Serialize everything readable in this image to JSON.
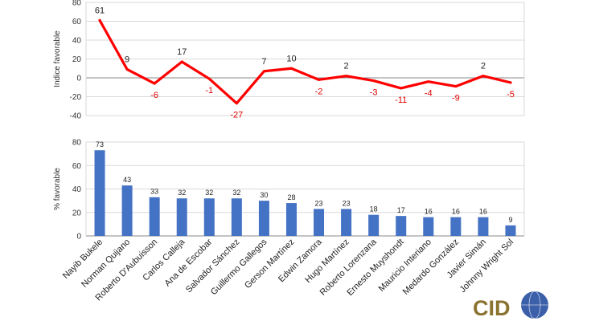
{
  "chart_data": [
    {
      "type": "line",
      "ylabel": "Indice favorable",
      "ylim": [
        -40,
        80
      ],
      "yticks": [
        -40,
        -20,
        0,
        20,
        40,
        60,
        80
      ],
      "grid": true,
      "categories": [
        "Nayib Bukele",
        "Norman Quijano",
        "Roberto D'Aubuisson",
        "Carlos Calleja",
        "Ana de Escobar",
        "Salvador Sánchez",
        "Guillermo Gallegos",
        "Gerson Martínez",
        "Edwin Zamora",
        "Hugo Martínez",
        "Roberto Lorenzana",
        "Ernesto Muyshondt",
        "Mauricio Interiano",
        "Medardo González",
        "Javier Simán",
        "Johnny Wright Sol"
      ],
      "values": [
        61,
        9,
        -6,
        17,
        -1,
        -27,
        7,
        10,
        -2,
        2,
        -3,
        -11,
        -4,
        -9,
        2,
        -5
      ],
      "line_color": "#ff0000",
      "positive_label_color": "#222222",
      "negative_label_color": "#e00000"
    },
    {
      "type": "bar",
      "ylabel": "% favorable",
      "ylim": [
        0,
        80
      ],
      "yticks": [
        0,
        20,
        40,
        60,
        80
      ],
      "grid": true,
      "categories": [
        "Nayib Bukele",
        "Norman Quijano",
        "Roberto D'Aubuisson",
        "Carlos Calleja",
        "Ana de Escobar",
        "Salvador Sánchez",
        "Guillermo Gallegos",
        "Gerson Martínez",
        "Edwin Zamora",
        "Hugo Martínez",
        "Roberto Lorenzana",
        "Ernesto Muyshondt",
        "Mauricio Interiano",
        "Medardo González",
        "Javier Simán",
        "Johnny Wright Sol"
      ],
      "values": [
        73,
        43,
        33,
        32,
        32,
        32,
        30,
        28,
        23,
        23,
        18,
        17,
        16,
        16,
        16,
        9
      ],
      "bar_color": "#4472c4"
    }
  ],
  "logo": {
    "text": "CID",
    "color": "#8b7330",
    "globe_color": "#3b5fa8"
  },
  "colors": {
    "grid": "#d9d9d9",
    "axis": "#888888"
  }
}
